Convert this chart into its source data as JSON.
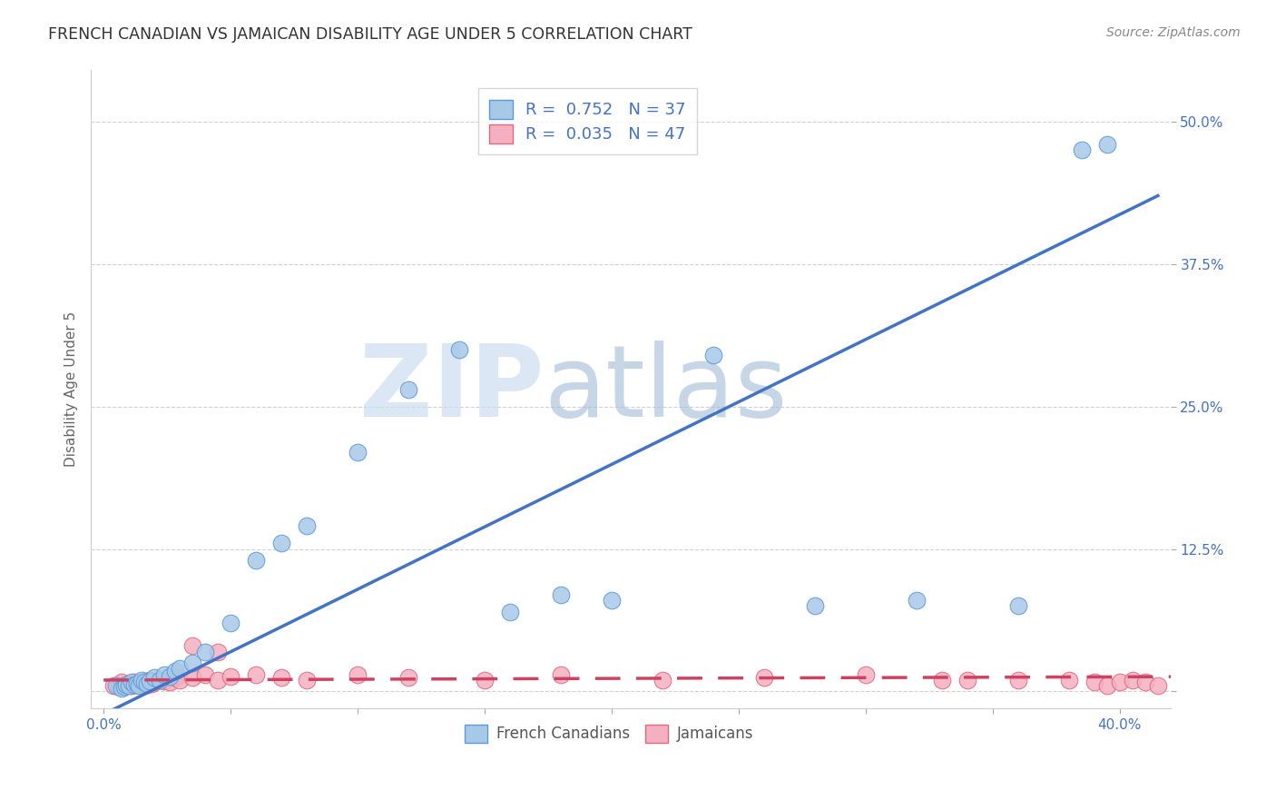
{
  "title": "FRENCH CANADIAN VS JAMAICAN DISABILITY AGE UNDER 5 CORRELATION CHART",
  "source": "Source: ZipAtlas.com",
  "ylabel": "Disability Age Under 5",
  "xlim": [
    -0.005,
    0.42
  ],
  "ylim": [
    -0.015,
    0.545
  ],
  "fc_color": "#a8c8e8",
  "fc_edge_color": "#5b9bd5",
  "jam_color": "#f4b0c0",
  "jam_edge_color": "#e06880",
  "fc_line_color": "#4472c4",
  "jam_line_color": "#d04060",
  "jam_line_dash": [
    8,
    5
  ],
  "watermark_zip_color": "#ccddf0",
  "watermark_atlas_color": "#a0bcd8",
  "french_canadians_x": [
    0.005,
    0.007,
    0.008,
    0.009,
    0.01,
    0.011,
    0.012,
    0.013,
    0.014,
    0.015,
    0.016,
    0.017,
    0.018,
    0.02,
    0.022,
    0.024,
    0.026,
    0.028,
    0.03,
    0.035,
    0.04,
    0.05,
    0.06,
    0.07,
    0.08,
    0.1,
    0.12,
    0.14,
    0.16,
    0.18,
    0.2,
    0.24,
    0.28,
    0.32,
    0.36,
    0.385,
    0.395
  ],
  "french_canadians_y": [
    0.005,
    0.003,
    0.004,
    0.006,
    0.005,
    0.008,
    0.006,
    0.007,
    0.005,
    0.01,
    0.008,
    0.007,
    0.009,
    0.012,
    0.01,
    0.015,
    0.013,
    0.018,
    0.02,
    0.025,
    0.035,
    0.06,
    0.115,
    0.13,
    0.145,
    0.21,
    0.265,
    0.3,
    0.07,
    0.085,
    0.08,
    0.295,
    0.075,
    0.08,
    0.075,
    0.475,
    0.48
  ],
  "jamaicans_x": [
    0.004,
    0.006,
    0.007,
    0.008,
    0.009,
    0.01,
    0.011,
    0.012,
    0.013,
    0.014,
    0.015,
    0.016,
    0.017,
    0.018,
    0.019,
    0.02,
    0.022,
    0.024,
    0.026,
    0.028,
    0.03,
    0.035,
    0.04,
    0.045,
    0.05,
    0.06,
    0.07,
    0.08,
    0.1,
    0.12,
    0.15,
    0.18,
    0.22,
    0.26,
    0.3,
    0.34,
    0.36,
    0.38,
    0.39,
    0.395,
    0.4,
    0.405,
    0.41,
    0.415,
    0.035,
    0.045,
    0.33
  ],
  "jamaicans_y": [
    0.005,
    0.004,
    0.008,
    0.005,
    0.006,
    0.007,
    0.005,
    0.008,
    0.006,
    0.007,
    0.005,
    0.009,
    0.006,
    0.01,
    0.007,
    0.008,
    0.01,
    0.009,
    0.008,
    0.012,
    0.01,
    0.012,
    0.015,
    0.01,
    0.013,
    0.015,
    0.012,
    0.01,
    0.015,
    0.012,
    0.01,
    0.015,
    0.01,
    0.012,
    0.015,
    0.01,
    0.01,
    0.01,
    0.008,
    0.005,
    0.008,
    0.01,
    0.008,
    0.005,
    0.04,
    0.035,
    0.01
  ],
  "fc_line_x0": 0.0,
  "fc_line_y0": -0.02,
  "fc_line_x1": 0.415,
  "fc_line_y1": 0.435,
  "jam_line_x0": 0.0,
  "jam_line_y0": 0.01,
  "jam_line_x1": 0.42,
  "jam_line_y1": 0.013
}
